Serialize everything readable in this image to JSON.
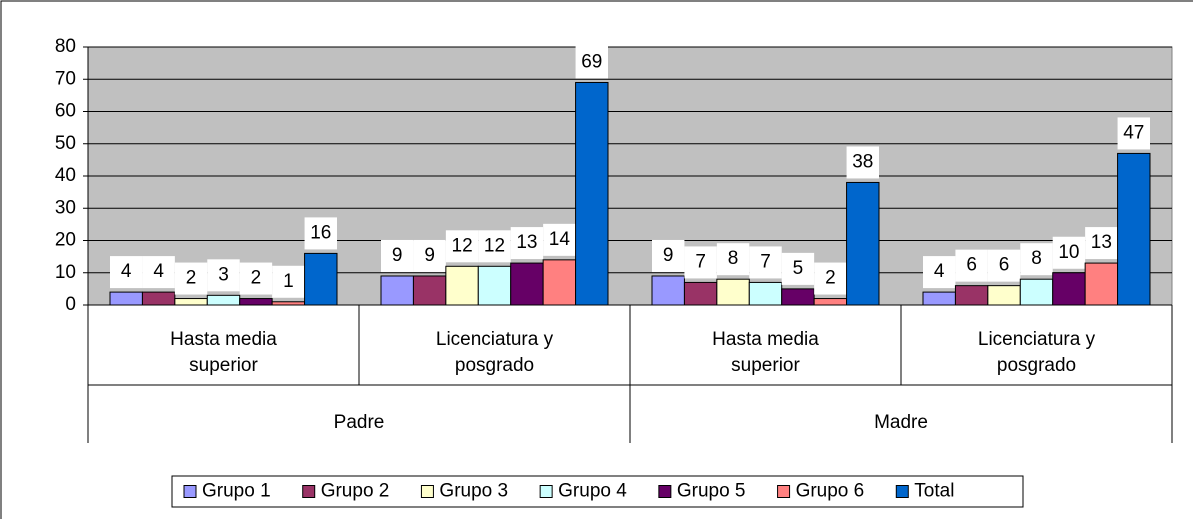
{
  "chart_data": {
    "type": "bar",
    "category_groups": [
      {
        "name": "Padre",
        "categories": [
          "Hasta media superior",
          "Licenciatura y posgrado"
        ]
      },
      {
        "name": "Madre",
        "categories": [
          "Hasta media superior",
          "Licenciatura y posgrado"
        ]
      }
    ],
    "series": [
      {
        "name": "Grupo 1",
        "color": "#9999ff",
        "values": [
          4,
          9,
          9,
          4
        ]
      },
      {
        "name": "Grupo 2",
        "color": "#993366",
        "values": [
          4,
          9,
          7,
          6
        ]
      },
      {
        "name": "Grupo 3",
        "color": "#ffffcc",
        "values": [
          2,
          12,
          8,
          6
        ]
      },
      {
        "name": "Grupo 4",
        "color": "#ccffff",
        "values": [
          3,
          12,
          7,
          8
        ]
      },
      {
        "name": "Grupo 5",
        "color": "#660066",
        "values": [
          2,
          13,
          5,
          10
        ]
      },
      {
        "name": "Grupo 6",
        "color": "#ff8080",
        "values": [
          1,
          14,
          2,
          13
        ]
      },
      {
        "name": "Total",
        "color": "#0066cc",
        "values": [
          16,
          69,
          38,
          47
        ]
      }
    ],
    "ylim": [
      0,
      80
    ],
    "yticks": [
      0,
      10,
      20,
      30,
      40,
      50,
      60,
      70,
      80
    ],
    "grid": true,
    "legend": "bottom"
  }
}
